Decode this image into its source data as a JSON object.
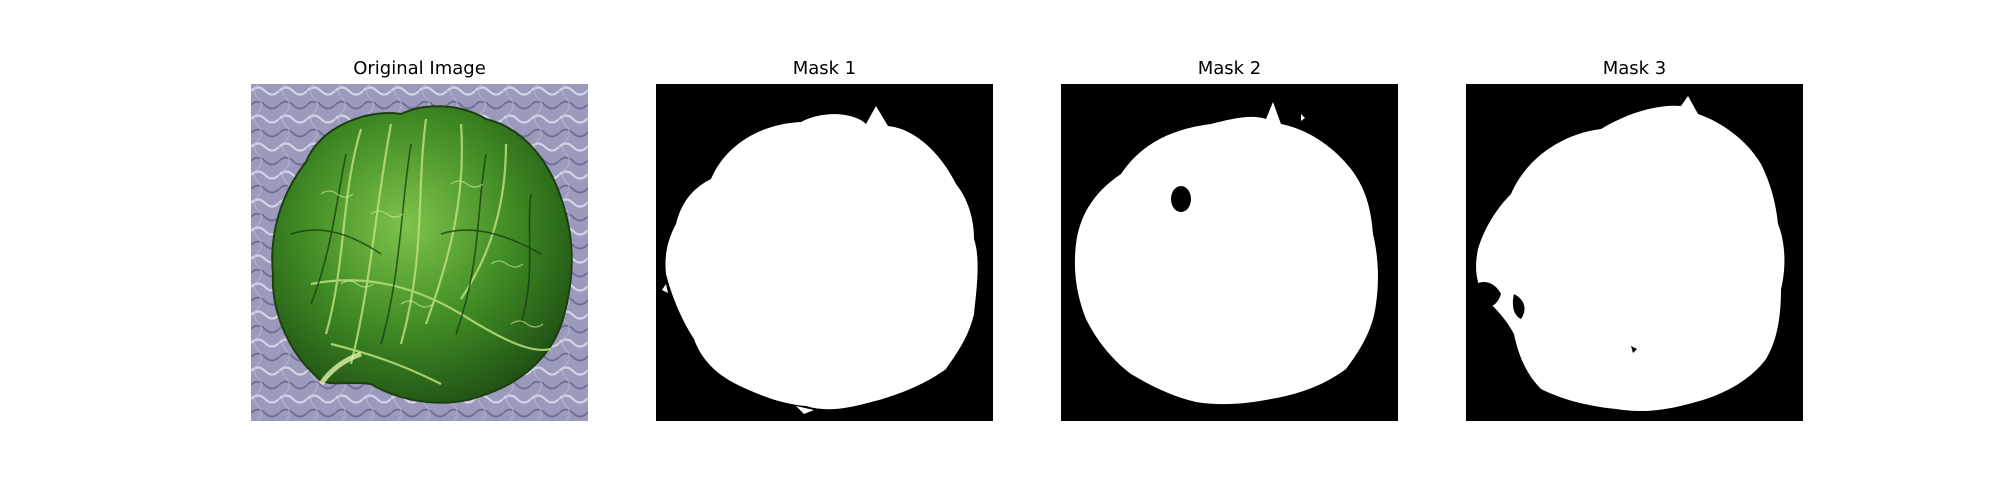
{
  "panels": [
    {
      "title": "Original Image",
      "subject": "green leafy lettuce head on a purple-gray textured background"
    },
    {
      "title": "Mask 1"
    },
    {
      "title": "Mask 2"
    },
    {
      "title": "Mask 3"
    }
  ],
  "colors": {
    "background": "#ffffff",
    "mask_foreground": "#ffffff",
    "mask_background": "#000000",
    "lettuce_dark": "#2f6b1f",
    "lettuce_mid": "#4f9a2c",
    "lettuce_light": "#a9d46a",
    "backdrop": "#9a99bd"
  }
}
